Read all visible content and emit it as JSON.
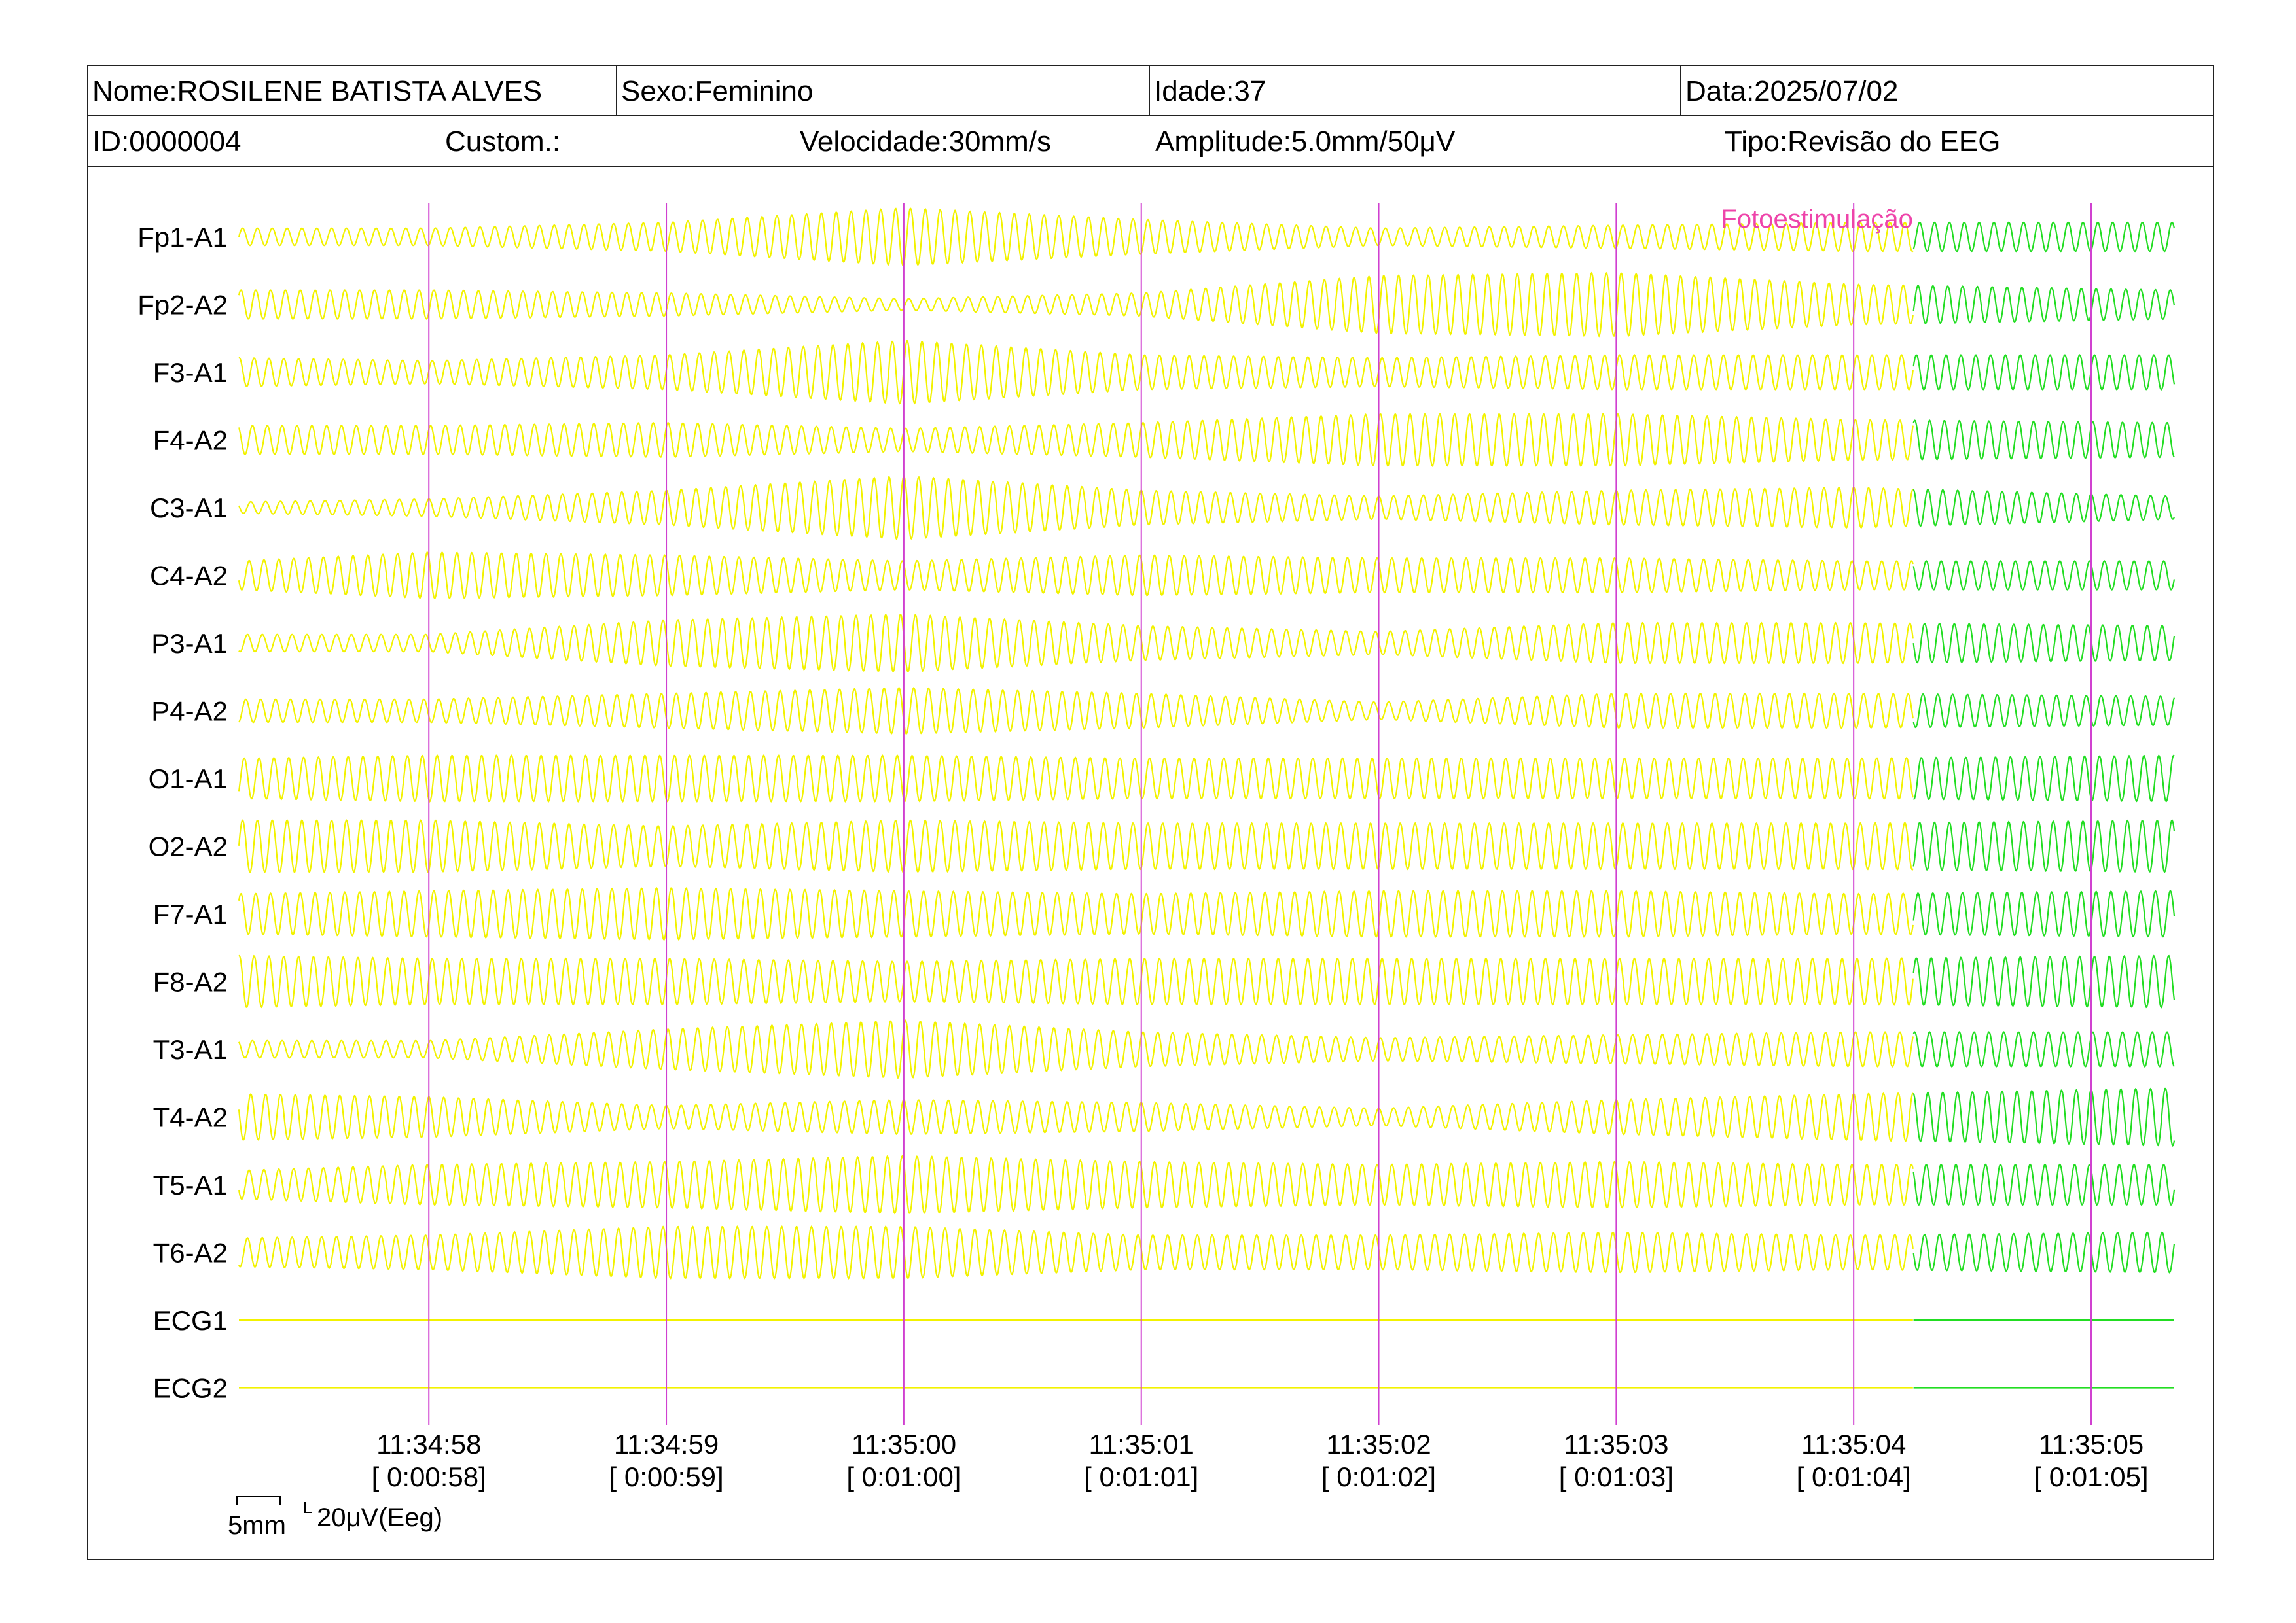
{
  "header": {
    "name": "Nome:ROSILENE BATISTA ALVES",
    "sex": "Sexo:Feminino",
    "age": "Idade:37",
    "date": "Data:2025/07/02",
    "id": "ID:0000004",
    "custom": "Custom.:",
    "speed": "Velocidade:30mm/s",
    "amplitude": "Amplitude:5.0mm/50μV",
    "type": "Tipo:Revisão do EEG"
  },
  "scale_bar": {
    "time": "5mm",
    "amplitude": "20μV(Eeg)"
  },
  "colors": {
    "trace_before": "#f2f200",
    "trace_after": "#22dd22",
    "marker_line": "#d040d0",
    "event_text": "#ee44aa"
  },
  "chart_data": {
    "type": "line",
    "title": "",
    "xlabel": "",
    "ylabel": "",
    "channels": [
      "Fp1-A1",
      "Fp2-A2",
      "F3-A1",
      "F4-A2",
      "C3-A1",
      "C4-A2",
      "P3-A1",
      "P4-A2",
      "O1-A1",
      "O2-A2",
      "F7-A1",
      "F8-A2",
      "T3-A1",
      "T4-A2",
      "T5-A1",
      "T6-A2",
      "ECG1",
      "ECG2"
    ],
    "time_ticks": [
      {
        "clock": "11:34:58",
        "elapsed": "[ 0:00:58]"
      },
      {
        "clock": "11:34:59",
        "elapsed": "[ 0:00:59]"
      },
      {
        "clock": "11:35:00",
        "elapsed": "[ 0:01:00]"
      },
      {
        "clock": "11:35:01",
        "elapsed": "[ 0:01:01]"
      },
      {
        "clock": "11:35:02",
        "elapsed": "[ 0:01:02]"
      },
      {
        "clock": "11:35:03",
        "elapsed": "[ 0:01:03]"
      },
      {
        "clock": "11:35:04",
        "elapsed": "[ 0:01:04]"
      },
      {
        "clock": "11:35:05",
        "elapsed": "[ 0:01:05]"
      }
    ],
    "x_range_seconds": [
      57.2,
      65.35
    ],
    "event": {
      "label": "Fotoestimulação",
      "time_seconds": 64.25
    },
    "wave_frequency_hz": 16,
    "amplitude_profiles_uV": {
      "Fp1-A1": [
        [
          57.2,
          6
        ],
        [
          58,
          6
        ],
        [
          59,
          10
        ],
        [
          60,
          20
        ],
        [
          61,
          12
        ],
        [
          62,
          6
        ],
        [
          63,
          8
        ],
        [
          64,
          10
        ],
        [
          65.35,
          10
        ]
      ],
      "Fp2-A2": [
        [
          57.2,
          10
        ],
        [
          58,
          10
        ],
        [
          59,
          8
        ],
        [
          60,
          4
        ],
        [
          61,
          8
        ],
        [
          62,
          20
        ],
        [
          63,
          22
        ],
        [
          64,
          14
        ],
        [
          65.35,
          10
        ]
      ],
      "F3-A1": [
        [
          57.2,
          10
        ],
        [
          58,
          8
        ],
        [
          59,
          12
        ],
        [
          60,
          22
        ],
        [
          61,
          12
        ],
        [
          62,
          10
        ],
        [
          63,
          12
        ],
        [
          64,
          12
        ],
        [
          65.35,
          12
        ]
      ],
      "F4-A2": [
        [
          57.2,
          10
        ],
        [
          58,
          10
        ],
        [
          59,
          12
        ],
        [
          60,
          8
        ],
        [
          61,
          12
        ],
        [
          62,
          18
        ],
        [
          63,
          18
        ],
        [
          64,
          14
        ],
        [
          65.35,
          12
        ]
      ],
      "C3-A1": [
        [
          57.2,
          4
        ],
        [
          58,
          6
        ],
        [
          59,
          12
        ],
        [
          60,
          22
        ],
        [
          61,
          12
        ],
        [
          62,
          8
        ],
        [
          63,
          12
        ],
        [
          64,
          14
        ],
        [
          65.35,
          8
        ]
      ],
      "C4-A2": [
        [
          57.2,
          10
        ],
        [
          58,
          16
        ],
        [
          59,
          14
        ],
        [
          60,
          10
        ],
        [
          61,
          14
        ],
        [
          62,
          12
        ],
        [
          63,
          12
        ],
        [
          64,
          10
        ],
        [
          65.35,
          10
        ]
      ],
      "P3-A1": [
        [
          57.2,
          6
        ],
        [
          58,
          6
        ],
        [
          59,
          16
        ],
        [
          60,
          20
        ],
        [
          61,
          12
        ],
        [
          62,
          8
        ],
        [
          63,
          14
        ],
        [
          64,
          14
        ],
        [
          65.35,
          12
        ]
      ],
      "P4-A2": [
        [
          57.2,
          8
        ],
        [
          58,
          8
        ],
        [
          59,
          12
        ],
        [
          60,
          16
        ],
        [
          61,
          12
        ],
        [
          62,
          6
        ],
        [
          63,
          12
        ],
        [
          64,
          12
        ],
        [
          65.35,
          10
        ]
      ],
      "O1-A1": [
        [
          57.2,
          14
        ],
        [
          58,
          16
        ],
        [
          59,
          16
        ],
        [
          60,
          16
        ],
        [
          61,
          14
        ],
        [
          62,
          14
        ],
        [
          63,
          14
        ],
        [
          64,
          14
        ],
        [
          65.35,
          16
        ]
      ],
      "O2-A2": [
        [
          57.2,
          18
        ],
        [
          58,
          18
        ],
        [
          59,
          14
        ],
        [
          60,
          18
        ],
        [
          61,
          16
        ],
        [
          62,
          16
        ],
        [
          63,
          16
        ],
        [
          64,
          16
        ],
        [
          65.35,
          18
        ]
      ],
      "F7-A1": [
        [
          57.2,
          14
        ],
        [
          58,
          16
        ],
        [
          59,
          18
        ],
        [
          60,
          16
        ],
        [
          61,
          14
        ],
        [
          62,
          16
        ],
        [
          63,
          16
        ],
        [
          64,
          14
        ],
        [
          65.35,
          16
        ]
      ],
      "F8-A2": [
        [
          57.2,
          18
        ],
        [
          58,
          16
        ],
        [
          59,
          16
        ],
        [
          60,
          14
        ],
        [
          61,
          16
        ],
        [
          62,
          16
        ],
        [
          63,
          16
        ],
        [
          64,
          16
        ],
        [
          65.35,
          18
        ]
      ],
      "T3-A1": [
        [
          57.2,
          6
        ],
        [
          58,
          6
        ],
        [
          59,
          14
        ],
        [
          60,
          20
        ],
        [
          61,
          12
        ],
        [
          62,
          8
        ],
        [
          63,
          10
        ],
        [
          64,
          12
        ],
        [
          65.35,
          12
        ]
      ],
      "T4-A2": [
        [
          57.2,
          16
        ],
        [
          58,
          14
        ],
        [
          59,
          8
        ],
        [
          60,
          12
        ],
        [
          61,
          10
        ],
        [
          62,
          6
        ],
        [
          63,
          12
        ],
        [
          64,
          16
        ],
        [
          65.35,
          20
        ]
      ],
      "T5-A1": [
        [
          57.2,
          10
        ],
        [
          58,
          14
        ],
        [
          59,
          16
        ],
        [
          60,
          20
        ],
        [
          61,
          16
        ],
        [
          62,
          14
        ],
        [
          63,
          16
        ],
        [
          64,
          14
        ],
        [
          65.35,
          14
        ]
      ],
      "T6-A2": [
        [
          57.2,
          10
        ],
        [
          58,
          12
        ],
        [
          59,
          18
        ],
        [
          60,
          18
        ],
        [
          61,
          12
        ],
        [
          62,
          12
        ],
        [
          63,
          14
        ],
        [
          64,
          12
        ],
        [
          65.35,
          14
        ]
      ],
      "ECG1": [
        [
          57.2,
          0
        ],
        [
          65.35,
          0
        ]
      ],
      "ECG2": [
        [
          57.2,
          0
        ],
        [
          65.35,
          0
        ]
      ]
    }
  }
}
